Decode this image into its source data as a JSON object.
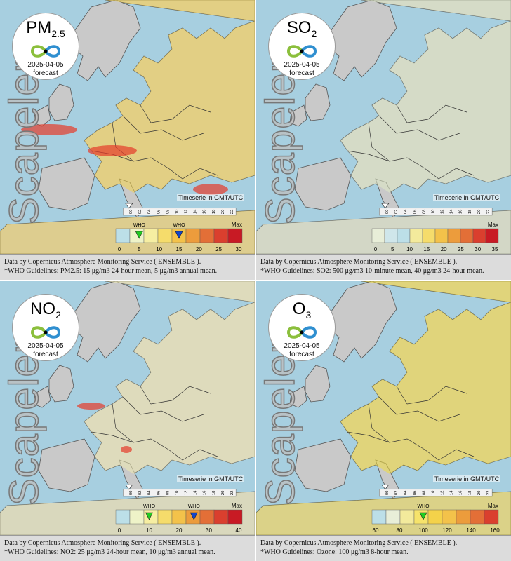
{
  "panels": [
    {
      "pollutant": "PM",
      "subscript": "2.5",
      "date": "2025-04-05",
      "forecast_label": "forecast",
      "brand": "Scapeler",
      "timezone_label": "Timeserie in GMT/UTC",
      "timeline_hours": [
        "00",
        "02",
        "04",
        "06",
        "08",
        "10",
        "12",
        "14",
        "16",
        "18",
        "20",
        "22"
      ],
      "scale_ticks": [
        "0",
        "5",
        "10",
        "15",
        "20",
        "25",
        "30"
      ],
      "scale_max": "Max",
      "who_labels": [
        "WHO",
        "WHO"
      ],
      "who_values": [
        5,
        15
      ],
      "who_marker_colors": [
        "#22cc22",
        "#1144cc"
      ],
      "scale_colors": [
        "#bcdfe8",
        "#eef3c8",
        "#f6eea2",
        "#f5dc6b",
        "#f3c24a",
        "#ec9c3c",
        "#e36f37",
        "#da3f2e",
        "#c81a24"
      ],
      "caption_line1": "Data by Copernicus Atmosphere Monitoring Service ( ENSEMBLE ).",
      "caption_line2": "*WHO Guidelines: PM2.5: 15 μg/m3 24-hour mean, 5 μg/m3 annual mean.",
      "map_tint": "#f6d34a"
    },
    {
      "pollutant": "SO",
      "subscript": "2",
      "date": "2025-04-05",
      "forecast_label": "forecast",
      "brand": "Scapeler",
      "timezone_label": "Timeserie in GMT/UTC",
      "timeline_hours": [
        "00",
        "02",
        "04",
        "06",
        "08",
        "10",
        "12",
        "14",
        "16",
        "18",
        "20",
        "22"
      ],
      "scale_ticks": [
        "0",
        "5",
        "10",
        "15",
        "20",
        "25",
        "30",
        "35"
      ],
      "scale_max": "Max",
      "who_labels": [],
      "who_values": [],
      "who_marker_colors": [],
      "scale_colors": [
        "#e8eed8",
        "#cfe6ea",
        "#bcdfe8",
        "#f3ea9c",
        "#f5dc6b",
        "#f3c24a",
        "#ec9c3c",
        "#e36f37",
        "#da3f2e",
        "#c81a24"
      ],
      "caption_line1": "Data by Copernicus Atmosphere Monitoring Service ( ENSEMBLE ).",
      "caption_line2": "*WHO Guidelines: SO2: 500 μg/m3 10-minute mean, 40 μg/m3 24-hour mean.",
      "map_tint": "#dfe9c4"
    },
    {
      "pollutant": "NO",
      "subscript": "2",
      "date": "2025-04-05",
      "forecast_label": "forecast",
      "brand": "Scapeler",
      "timezone_label": "Timeserie in GMT/UTC",
      "timeline_hours": [
        "00",
        "02",
        "04",
        "06",
        "08",
        "10",
        "12",
        "14",
        "16",
        "18",
        "20",
        "22"
      ],
      "scale_ticks": [
        "0",
        "10",
        "20",
        "30",
        "40"
      ],
      "scale_max": "Max",
      "who_labels": [
        "WHO",
        "WHO"
      ],
      "who_values": [
        10,
        25
      ],
      "who_marker_colors": [
        "#22cc22",
        "#1144cc"
      ],
      "scale_colors": [
        "#bcdfe8",
        "#eef3c8",
        "#f6eea2",
        "#f5dc6b",
        "#f3c24a",
        "#ec9c3c",
        "#e36f37",
        "#da3f2e",
        "#c81a24"
      ],
      "caption_line1": "Data by Copernicus Atmosphere Monitoring Service ( ENSEMBLE ).",
      "caption_line2": "*WHO Guidelines: NO2: 25 μg/m3 24-hour mean, 10 μg/m3 annual mean.",
      "map_tint": "#eeeab0"
    },
    {
      "pollutant": "O",
      "subscript": "3",
      "date": "2025-04-05",
      "forecast_label": "forecast",
      "brand": "Scapeler",
      "timezone_label": "Timeserie in GMT/UTC",
      "timeline_hours": [
        "00",
        "02",
        "04",
        "06",
        "08",
        "10",
        "12",
        "14",
        "16",
        "18",
        "20",
        "22"
      ],
      "scale_ticks": [
        "60",
        "80",
        "100",
        "120",
        "140",
        "160"
      ],
      "scale_max": "Max",
      "who_labels": [
        "WHO"
      ],
      "who_values": [
        100
      ],
      "who_marker_colors": [
        "#22cc22"
      ],
      "scale_colors": [
        "#bcdfe8",
        "#e8eed8",
        "#f3ea9c",
        "#f6e36b",
        "#f4d24a",
        "#f3c24a",
        "#ec9c3c",
        "#e36f37",
        "#da3f2e"
      ],
      "caption_line1": "Data by Copernicus Atmosphere Monitoring Service ( ENSEMBLE ).",
      "caption_line2": "*WHO Guidelines: Ozone: 100 μg/m3 8-hour mean.",
      "map_tint": "#f2dd3a"
    }
  ]
}
